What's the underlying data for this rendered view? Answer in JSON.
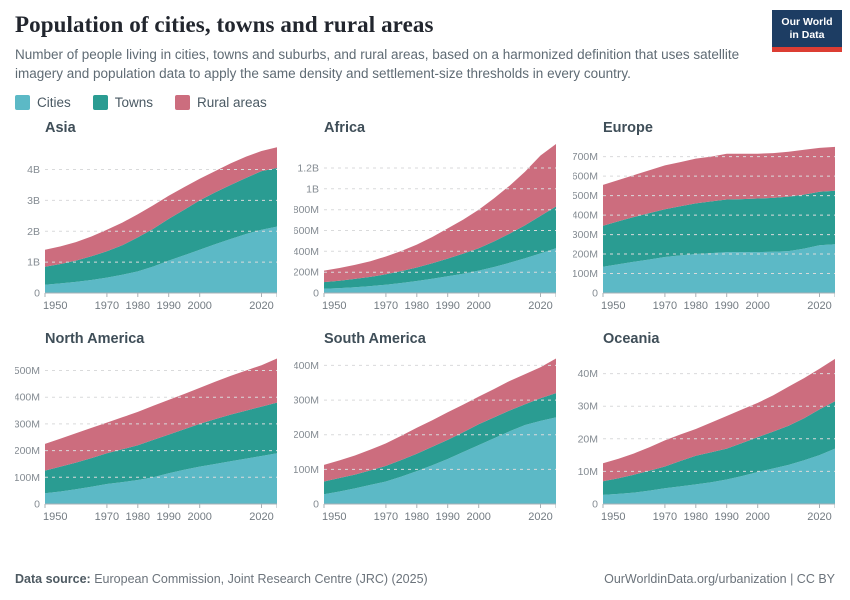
{
  "header": {
    "title": "Population of cities, towns and rural areas",
    "subtitle": "Number of people living in cities, towns and suburbs, and rural areas, based on a harmonized definition that uses satellite imagery and population data to apply the same density and settlement-size thresholds in every country.",
    "logo": {
      "line1": "Our World",
      "line2": "in Data",
      "bg_color": "#1d3d63",
      "bar_color": "#dc3d33"
    }
  },
  "colors": {
    "Cities": "#5cb9c6",
    "Towns": "#2a9c92",
    "Rural areas": "#cc6d7e"
  },
  "legend": [
    {
      "label": "Cities"
    },
    {
      "label": "Towns"
    },
    {
      "label": "Rural areas"
    }
  ],
  "chart_data": [
    {
      "type": "area",
      "title": "Asia",
      "unit": "billions",
      "x": [
        1950,
        1955,
        1960,
        1965,
        1970,
        1975,
        1980,
        1985,
        1990,
        1995,
        2000,
        2005,
        2010,
        2015,
        2020,
        2025
      ],
      "x_domain": [
        1950,
        2025
      ],
      "x_ticks": [
        1950,
        1970,
        1980,
        1990,
        2000,
        2020
      ],
      "y_max": 4.86,
      "y_ticks": [
        {
          "v": 0,
          "label": "0"
        },
        {
          "v": 1,
          "label": "1B"
        },
        {
          "v": 2,
          "label": "2B"
        },
        {
          "v": 3,
          "label": "3B"
        },
        {
          "v": 4,
          "label": "4B"
        }
      ],
      "series": [
        {
          "name": "Cities",
          "values": [
            0.27,
            0.31,
            0.36,
            0.42,
            0.5,
            0.59,
            0.7,
            0.86,
            1.05,
            1.22,
            1.4,
            1.58,
            1.75,
            1.91,
            2.05,
            2.15
          ]
        },
        {
          "name": "Towns",
          "values": [
            0.58,
            0.63,
            0.69,
            0.77,
            0.85,
            0.96,
            1.1,
            1.22,
            1.35,
            1.48,
            1.6,
            1.68,
            1.75,
            1.82,
            1.9,
            1.9
          ]
        },
        {
          "name": "Rural areas",
          "values": [
            0.55,
            0.57,
            0.6,
            0.64,
            0.7,
            0.73,
            0.75,
            0.76,
            0.75,
            0.73,
            0.7,
            0.69,
            0.7,
            0.69,
            0.65,
            0.67
          ]
        }
      ]
    },
    {
      "type": "area",
      "title": "Africa",
      "unit": "millions",
      "x": [
        1950,
        1955,
        1960,
        1965,
        1970,
        1975,
        1980,
        1985,
        1990,
        1995,
        2000,
        2005,
        2010,
        2015,
        2020,
        2025
      ],
      "x_domain": [
        1950,
        2025
      ],
      "x_ticks": [
        1950,
        1970,
        1980,
        1990,
        2000,
        2020
      ],
      "y_max": 1440,
      "y_ticks": [
        {
          "v": 0,
          "label": "0"
        },
        {
          "v": 200,
          "label": "200M"
        },
        {
          "v": 400,
          "label": "400M"
        },
        {
          "v": 600,
          "label": "600M"
        },
        {
          "v": 800,
          "label": "800M"
        },
        {
          "v": 1000,
          "label": "1B"
        },
        {
          "v": 1200,
          "label": "1.2B"
        }
      ],
      "series": [
        {
          "name": "Cities",
          "values": [
            40,
            47,
            55,
            66,
            80,
            96,
            115,
            136,
            160,
            185,
            215,
            250,
            290,
            333,
            380,
            430
          ]
        },
        {
          "name": "Towns",
          "values": [
            65,
            71,
            80,
            89,
            100,
            114,
            130,
            149,
            170,
            193,
            215,
            245,
            280,
            317,
            360,
            400
          ]
        },
        {
          "name": "Rural areas",
          "values": [
            110,
            122,
            135,
            150,
            170,
            193,
            220,
            253,
            290,
            327,
            370,
            415,
            460,
            515,
            580,
            600
          ]
        }
      ]
    },
    {
      "type": "area",
      "title": "Europe",
      "unit": "millions",
      "x": [
        1950,
        1955,
        1960,
        1965,
        1970,
        1975,
        1980,
        1985,
        1990,
        1995,
        2000,
        2005,
        2010,
        2015,
        2020,
        2025
      ],
      "x_domain": [
        1950,
        2025
      ],
      "x_ticks": [
        1950,
        1970,
        1980,
        1990,
        2000,
        2020
      ],
      "y_max": 770,
      "y_ticks": [
        {
          "v": 0,
          "label": "0"
        },
        {
          "v": 100,
          "label": "100M"
        },
        {
          "v": 200,
          "label": "200M"
        },
        {
          "v": 300,
          "label": "300M"
        },
        {
          "v": 400,
          "label": "400M"
        },
        {
          "v": 500,
          "label": "500M"
        },
        {
          "v": 600,
          "label": "600M"
        },
        {
          "v": 700,
          "label": "700M"
        }
      ],
      "series": [
        {
          "name": "Cities",
          "values": [
            135,
            148,
            160,
            172,
            185,
            193,
            200,
            205,
            210,
            210,
            210,
            212,
            215,
            228,
            245,
            250
          ]
        },
        {
          "name": "Towns",
          "values": [
            210,
            220,
            230,
            238,
            245,
            252,
            260,
            265,
            270,
            272,
            275,
            276,
            280,
            277,
            275,
            275
          ]
        },
        {
          "name": "Rural areas",
          "values": [
            210,
            212,
            215,
            220,
            225,
            227,
            230,
            230,
            235,
            233,
            230,
            230,
            230,
            230,
            225,
            225
          ]
        }
      ]
    },
    {
      "type": "area",
      "title": "North America",
      "unit": "millions",
      "x": [
        1950,
        1955,
        1960,
        1965,
        1970,
        1975,
        1980,
        1985,
        1990,
        1995,
        2000,
        2005,
        2010,
        2015,
        2020,
        2025
      ],
      "x_domain": [
        1950,
        2025
      ],
      "x_ticks": [
        1950,
        1970,
        1980,
        1990,
        2000,
        2020
      ],
      "y_max": 562,
      "y_ticks": [
        {
          "v": 0,
          "label": "0"
        },
        {
          "v": 100,
          "label": "100M"
        },
        {
          "v": 200,
          "label": "200M"
        },
        {
          "v": 300,
          "label": "300M"
        },
        {
          "v": 400,
          "label": "400M"
        },
        {
          "v": 500,
          "label": "500M"
        }
      ],
      "series": [
        {
          "name": "Cities",
          "values": [
            40,
            47,
            55,
            65,
            75,
            82,
            90,
            100,
            115,
            128,
            140,
            150,
            160,
            170,
            180,
            190
          ]
        },
        {
          "name": "Towns",
          "values": [
            85,
            93,
            100,
            107,
            115,
            123,
            130,
            140,
            145,
            152,
            160,
            168,
            175,
            180,
            185,
            190
          ]
        },
        {
          "name": "Rural areas",
          "values": [
            100,
            105,
            110,
            113,
            115,
            120,
            125,
            128,
            130,
            132,
            135,
            140,
            145,
            150,
            155,
            165
          ]
        }
      ]
    },
    {
      "type": "area",
      "title": "South America",
      "unit": "millions",
      "x": [
        1950,
        1955,
        1960,
        1965,
        1970,
        1975,
        1980,
        1985,
        1990,
        1995,
        2000,
        2005,
        2010,
        2015,
        2020,
        2025
      ],
      "x_domain": [
        1950,
        2025
      ],
      "x_ticks": [
        1950,
        1970,
        1980,
        1990,
        2000,
        2020
      ],
      "y_max": 433,
      "y_ticks": [
        {
          "v": 0,
          "label": "0"
        },
        {
          "v": 100,
          "label": "100M"
        },
        {
          "v": 200,
          "label": "200M"
        },
        {
          "v": 300,
          "label": "300M"
        },
        {
          "v": 400,
          "label": "400M"
        }
      ],
      "series": [
        {
          "name": "Cities",
          "values": [
            28,
            36,
            45,
            55,
            65,
            79,
            95,
            112,
            130,
            150,
            170,
            190,
            210,
            228,
            240,
            250
          ]
        },
        {
          "name": "Towns",
          "values": [
            37,
            39,
            40,
            42,
            45,
            48,
            50,
            53,
            55,
            57,
            60,
            60,
            60,
            60,
            65,
            70
          ]
        },
        {
          "name": "Rural areas",
          "values": [
            48,
            51,
            55,
            60,
            65,
            70,
            75,
            77,
            80,
            80,
            80,
            82,
            85,
            87,
            90,
            100
          ]
        }
      ]
    },
    {
      "type": "area",
      "title": "Oceania",
      "unit": "millions",
      "x": [
        1950,
        1955,
        1960,
        1965,
        1970,
        1975,
        1980,
        1985,
        1990,
        1995,
        2000,
        2005,
        2010,
        2015,
        2020,
        2025
      ],
      "x_domain": [
        1950,
        2025
      ],
      "x_ticks": [
        1950,
        1970,
        1980,
        1990,
        2000,
        2020
      ],
      "y_max": 46,
      "y_ticks": [
        {
          "v": 0,
          "label": "0"
        },
        {
          "v": 10,
          "label": "10M"
        },
        {
          "v": 20,
          "label": "20M"
        },
        {
          "v": 30,
          "label": "30M"
        },
        {
          "v": 40,
          "label": "40M"
        }
      ],
      "series": [
        {
          "name": "Cities",
          "values": [
            2.8,
            3.1,
            3.5,
            4.1,
            4.8,
            5.4,
            6.0,
            6.7,
            7.5,
            8.6,
            9.8,
            10.9,
            12.0,
            13.4,
            15.0,
            17.0
          ]
        },
        {
          "name": "Towns",
          "values": [
            4.2,
            4.8,
            5.5,
            6.1,
            6.7,
            7.8,
            8.8,
            9.2,
            9.5,
            10.1,
            10.7,
            11.3,
            12.0,
            12.9,
            14.0,
            14.5
          ]
        },
        {
          "name": "Rural areas",
          "values": [
            5.5,
            6.0,
            6.5,
            7.2,
            8.0,
            8.1,
            8.2,
            9.1,
            10.0,
            10.3,
            10.5,
            11.1,
            12.0,
            12.3,
            12.5,
            13.0
          ]
        }
      ]
    }
  ],
  "footer": {
    "source_label": "Data source:",
    "source_text": "European Commission, Joint Research Centre (JRC) (2025)",
    "right_text": "OurWorldinData.org/urbanization | CC BY"
  }
}
